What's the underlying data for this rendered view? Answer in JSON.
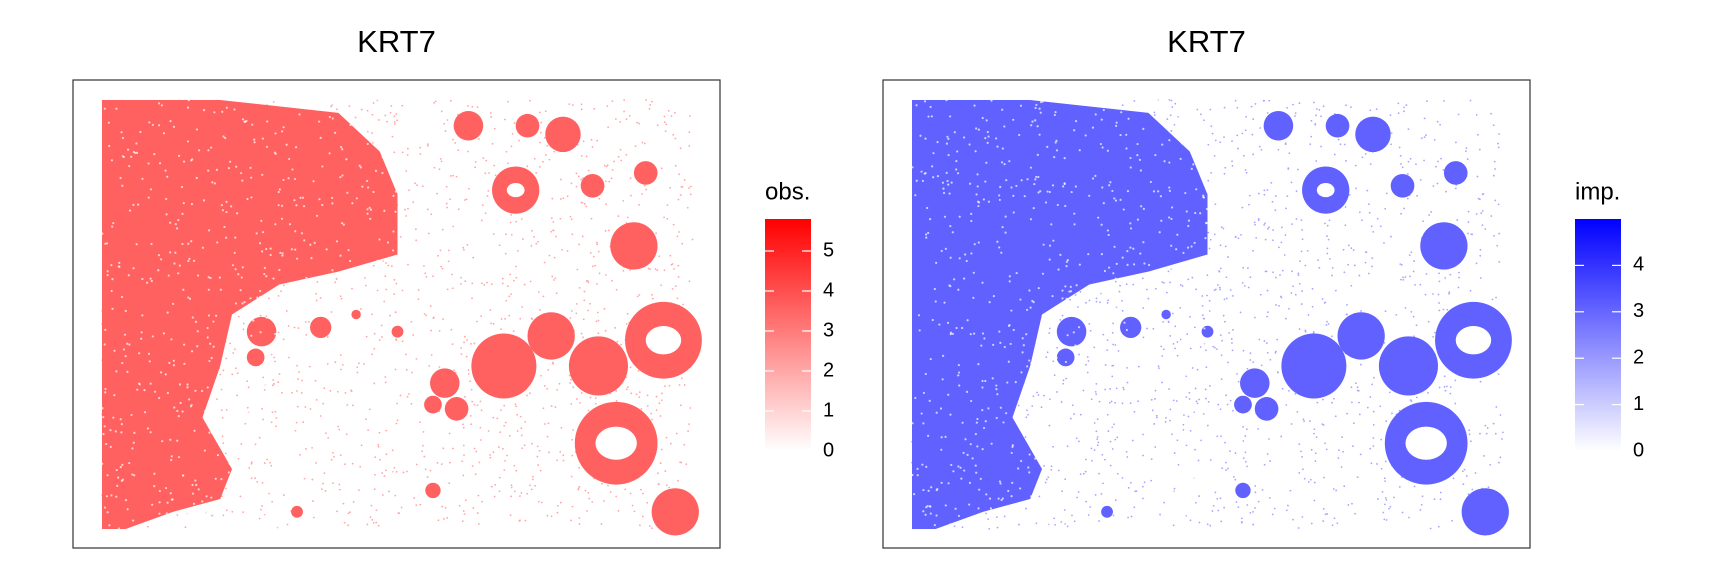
{
  "chart_data": [
    {
      "type": "spatial",
      "title": "KRT7",
      "legend_title": "obs.",
      "low_color": "#ffffff",
      "high_color": "#ff0000",
      "clim": [
        0,
        5.8
      ],
      "cticks": [
        0,
        1,
        2,
        3,
        4,
        5
      ]
    },
    {
      "type": "spatial",
      "title": "KRT7",
      "legend_title": "imp.",
      "low_color": "#ffffff",
      "high_color": "#0000ff",
      "clim": [
        0,
        5
      ],
      "cticks": [
        0,
        1,
        2,
        3,
        4
      ]
    }
  ]
}
